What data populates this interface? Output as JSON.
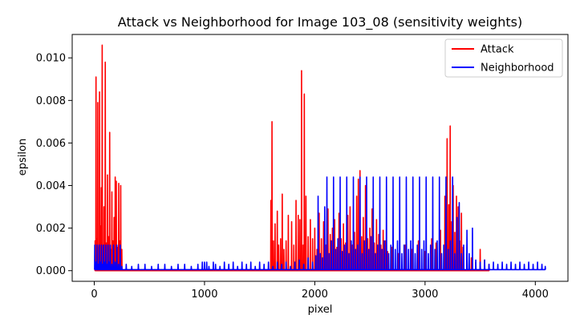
{
  "chart_data": {
    "type": "line",
    "title": "Attack vs Neighborhood for Image 103_08 (sensitivity weights)",
    "xlabel": "pixel",
    "ylabel": "epsilon",
    "xlim": [
      -200,
      4296
    ],
    "ylim": [
      -0.0005,
      0.0111
    ],
    "xticks": [
      0,
      1000,
      2000,
      3000,
      4000
    ],
    "yticks": [
      0.0,
      0.002,
      0.004,
      0.006,
      0.008,
      0.01
    ],
    "ytick_labels": [
      "0.000",
      "0.002",
      "0.004",
      "0.006",
      "0.008",
      "0.010"
    ],
    "legend_position": "top-right",
    "colors": {
      "attack": "#ff0000",
      "neighborhood": "#0000ff"
    },
    "series": [
      {
        "name": "Attack",
        "color": "#ff0000",
        "spikes": [
          [
            8,
            0.0014
          ],
          [
            16,
            0.0091
          ],
          [
            24,
            0.0015
          ],
          [
            32,
            0.0079
          ],
          [
            40,
            0.0011
          ],
          [
            48,
            0.0084
          ],
          [
            56,
            0.0021
          ],
          [
            64,
            0.0039
          ],
          [
            72,
            0.0106
          ],
          [
            80,
            0.0012
          ],
          [
            88,
            0.003
          ],
          [
            100,
            0.0098
          ],
          [
            110,
            0.0013
          ],
          [
            120,
            0.0045
          ],
          [
            130,
            0.0016
          ],
          [
            140,
            0.0065
          ],
          [
            150,
            0.001
          ],
          [
            160,
            0.0037
          ],
          [
            170,
            0.0014
          ],
          [
            180,
            0.0025
          ],
          [
            190,
            0.0044
          ],
          [
            200,
            0.0042
          ],
          [
            210,
            0.0011
          ],
          [
            222,
            0.0041
          ],
          [
            232,
            0.0014
          ],
          [
            240,
            0.004
          ],
          [
            250,
            0.001
          ],
          [
            1602,
            0.0033
          ],
          [
            1612,
            0.007
          ],
          [
            1625,
            0.0014
          ],
          [
            1640,
            0.0022
          ],
          [
            1660,
            0.0028
          ],
          [
            1672,
            0.0012
          ],
          [
            1690,
            0.0015
          ],
          [
            1705,
            0.0036
          ],
          [
            1720,
            0.001
          ],
          [
            1740,
            0.0014
          ],
          [
            1760,
            0.0026
          ],
          [
            1790,
            0.0023
          ],
          [
            1810,
            0.0012
          ],
          [
            1830,
            0.0033
          ],
          [
            1850,
            0.0026
          ],
          [
            1865,
            0.0024
          ],
          [
            1880,
            0.0094
          ],
          [
            1895,
            0.0012
          ],
          [
            1905,
            0.0083
          ],
          [
            1920,
            0.0035
          ],
          [
            1940,
            0.0016
          ],
          [
            1960,
            0.0024
          ],
          [
            1980,
            0.0015
          ],
          [
            2000,
            0.002
          ],
          [
            2020,
            0.001
          ],
          [
            2040,
            0.0027
          ],
          [
            2060,
            0.0015
          ],
          [
            2080,
            0.0023
          ],
          [
            2100,
            0.0012
          ],
          [
            2120,
            0.0029
          ],
          [
            2140,
            0.0017
          ],
          [
            2160,
            0.002
          ],
          [
            2180,
            0.0024
          ],
          [
            2200,
            0.0011
          ],
          [
            2220,
            0.0027
          ],
          [
            2240,
            0.0015
          ],
          [
            2260,
            0.0022
          ],
          [
            2280,
            0.0013
          ],
          [
            2300,
            0.0026
          ],
          [
            2320,
            0.003
          ],
          [
            2340,
            0.0012
          ],
          [
            2360,
            0.0018
          ],
          [
            2380,
            0.0035
          ],
          [
            2395,
            0.0043
          ],
          [
            2410,
            0.0047
          ],
          [
            2425,
            0.0016
          ],
          [
            2440,
            0.0025
          ],
          [
            2460,
            0.004
          ],
          [
            2480,
            0.0015
          ],
          [
            2500,
            0.002
          ],
          [
            2520,
            0.0029
          ],
          [
            2540,
            0.0013
          ],
          [
            2560,
            0.0024
          ],
          [
            2580,
            0.0017
          ],
          [
            2600,
            0.0012
          ],
          [
            2620,
            0.0019
          ],
          [
            2640,
            0.0014
          ],
          [
            2660,
            0.0009
          ],
          [
            2700,
            0.0011
          ],
          [
            2760,
            0.0008
          ],
          [
            2820,
            0.0012
          ],
          [
            2880,
            0.001
          ],
          [
            2940,
            0.0014
          ],
          [
            3000,
            0.0009
          ],
          [
            3060,
            0.0015
          ],
          [
            3100,
            0.0013
          ],
          [
            3140,
            0.0019
          ],
          [
            3180,
            0.0035
          ],
          [
            3200,
            0.0062
          ],
          [
            3215,
            0.0031
          ],
          [
            3228,
            0.0068
          ],
          [
            3242,
            0.0023
          ],
          [
            3255,
            0.004
          ],
          [
            3270,
            0.0018
          ],
          [
            3285,
            0.0035
          ],
          [
            3300,
            0.003
          ],
          [
            3315,
            0.0014
          ],
          [
            3330,
            0.0027
          ],
          [
            3345,
            0.0011
          ],
          [
            3380,
            0.0008
          ],
          [
            3420,
            0.0006
          ],
          [
            3460,
            0.0004
          ],
          [
            3500,
            0.001
          ],
          [
            3540,
            0.0005
          ],
          [
            3580,
            0.0003
          ]
        ]
      },
      {
        "name": "Neighborhood",
        "color": "#0000ff",
        "spikes": [
          [
            5,
            0.0012
          ],
          [
            15,
            0.0004
          ],
          [
            25,
            0.0012
          ],
          [
            35,
            0.0003
          ],
          [
            45,
            0.0012
          ],
          [
            55,
            0.0004
          ],
          [
            65,
            0.0012
          ],
          [
            75,
            0.0003
          ],
          [
            85,
            0.0012
          ],
          [
            95,
            0.0004
          ],
          [
            105,
            0.0012
          ],
          [
            115,
            0.0003
          ],
          [
            125,
            0.0012
          ],
          [
            135,
            0.0004
          ],
          [
            145,
            0.0012
          ],
          [
            160,
            0.0003
          ],
          [
            175,
            0.0012
          ],
          [
            190,
            0.0004
          ],
          [
            205,
            0.0012
          ],
          [
            220,
            0.0003
          ],
          [
            235,
            0.0012
          ],
          [
            250,
            0.0002
          ],
          [
            290,
            0.0003
          ],
          [
            340,
            0.0002
          ],
          [
            400,
            0.0003
          ],
          [
            460,
            0.0003
          ],
          [
            520,
            0.0002
          ],
          [
            580,
            0.0003
          ],
          [
            640,
            0.0003
          ],
          [
            700,
            0.0002
          ],
          [
            760,
            0.0003
          ],
          [
            820,
            0.0003
          ],
          [
            880,
            0.0002
          ],
          [
            940,
            0.0003
          ],
          [
            980,
            0.0004
          ],
          [
            1000,
            0.0004
          ],
          [
            1020,
            0.0004
          ],
          [
            1040,
            0.0002
          ],
          [
            1080,
            0.0004
          ],
          [
            1100,
            0.0003
          ],
          [
            1140,
            0.0002
          ],
          [
            1180,
            0.0004
          ],
          [
            1220,
            0.0003
          ],
          [
            1260,
            0.0004
          ],
          [
            1300,
            0.0002
          ],
          [
            1340,
            0.0004
          ],
          [
            1380,
            0.0003
          ],
          [
            1420,
            0.0004
          ],
          [
            1460,
            0.0002
          ],
          [
            1500,
            0.0004
          ],
          [
            1540,
            0.0003
          ],
          [
            1580,
            0.0004
          ],
          [
            1620,
            0.0002
          ],
          [
            1660,
            0.0004
          ],
          [
            1700,
            0.0003
          ],
          [
            1740,
            0.0004
          ],
          [
            1780,
            0.0002
          ],
          [
            1820,
            0.0004
          ],
          [
            1860,
            0.0005
          ],
          [
            1900,
            0.0003
          ],
          [
            1940,
            0.0006
          ],
          [
            1980,
            0.0004
          ],
          [
            2010,
            0.0007
          ],
          [
            2030,
            0.0035
          ],
          [
            2050,
            0.0008
          ],
          [
            2070,
            0.0006
          ],
          [
            2090,
            0.003
          ],
          [
            2110,
            0.0044
          ],
          [
            2130,
            0.0008
          ],
          [
            2150,
            0.0014
          ],
          [
            2170,
            0.0044
          ],
          [
            2190,
            0.001
          ],
          [
            2210,
            0.0015
          ],
          [
            2230,
            0.0044
          ],
          [
            2250,
            0.0009
          ],
          [
            2270,
            0.0012
          ],
          [
            2290,
            0.0044
          ],
          [
            2310,
            0.0008
          ],
          [
            2330,
            0.0014
          ],
          [
            2350,
            0.0044
          ],
          [
            2370,
            0.001
          ],
          [
            2390,
            0.0012
          ],
          [
            2410,
            0.0044
          ],
          [
            2430,
            0.0008
          ],
          [
            2450,
            0.0014
          ],
          [
            2470,
            0.0044
          ],
          [
            2490,
            0.001
          ],
          [
            2510,
            0.0016
          ],
          [
            2530,
            0.0044
          ],
          [
            2550,
            0.0008
          ],
          [
            2570,
            0.0012
          ],
          [
            2590,
            0.0044
          ],
          [
            2610,
            0.001
          ],
          [
            2630,
            0.0014
          ],
          [
            2650,
            0.0044
          ],
          [
            2670,
            0.0008
          ],
          [
            2690,
            0.0012
          ],
          [
            2710,
            0.0044
          ],
          [
            2730,
            0.001
          ],
          [
            2750,
            0.0014
          ],
          [
            2770,
            0.0044
          ],
          [
            2790,
            0.0008
          ],
          [
            2810,
            0.0012
          ],
          [
            2830,
            0.0044
          ],
          [
            2850,
            0.001
          ],
          [
            2870,
            0.0014
          ],
          [
            2890,
            0.0044
          ],
          [
            2910,
            0.0008
          ],
          [
            2930,
            0.0012
          ],
          [
            2950,
            0.0044
          ],
          [
            2970,
            0.001
          ],
          [
            2990,
            0.0014
          ],
          [
            3010,
            0.0044
          ],
          [
            3030,
            0.0008
          ],
          [
            3050,
            0.0012
          ],
          [
            3070,
            0.0044
          ],
          [
            3090,
            0.001
          ],
          [
            3110,
            0.0014
          ],
          [
            3130,
            0.0044
          ],
          [
            3150,
            0.0008
          ],
          [
            3170,
            0.0012
          ],
          [
            3190,
            0.0044
          ],
          [
            3210,
            0.001
          ],
          [
            3230,
            0.0014
          ],
          [
            3250,
            0.0044
          ],
          [
            3270,
            0.0008
          ],
          [
            3290,
            0.0025
          ],
          [
            3310,
            0.0032
          ],
          [
            3330,
            0.0008
          ],
          [
            3350,
            0.0012
          ],
          [
            3380,
            0.0019
          ],
          [
            3400,
            0.0008
          ],
          [
            3430,
            0.002
          ],
          [
            3460,
            0.0005
          ],
          [
            3500,
            0.0004
          ],
          [
            3540,
            0.0005
          ],
          [
            3580,
            0.0003
          ],
          [
            3620,
            0.0004
          ],
          [
            3660,
            0.0003
          ],
          [
            3700,
            0.0004
          ],
          [
            3740,
            0.0003
          ],
          [
            3780,
            0.0004
          ],
          [
            3820,
            0.0003
          ],
          [
            3860,
            0.0004
          ],
          [
            3900,
            0.0003
          ],
          [
            3940,
            0.0004
          ],
          [
            3980,
            0.0003
          ],
          [
            4020,
            0.0004
          ],
          [
            4060,
            0.0003
          ],
          [
            4090,
            0.0002
          ]
        ]
      }
    ]
  }
}
